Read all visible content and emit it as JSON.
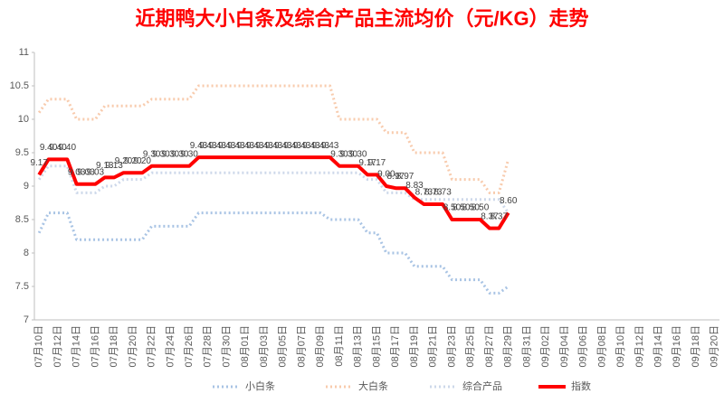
{
  "chart_data": {
    "type": "line",
    "title": "近期鸭大小白条及综合产品主流均价（元/KG）走势",
    "categories": [
      "07月10日",
      null,
      "07月12日",
      null,
      "07月14日",
      null,
      "07月16日",
      null,
      "07月18日",
      null,
      "07月20日",
      null,
      "07月22日",
      null,
      "07月24日",
      null,
      "07月26日",
      null,
      "07月28日",
      null,
      "07月30日",
      null,
      "08月01日",
      null,
      "08月03日",
      null,
      "08月05日",
      null,
      "08月07日",
      null,
      "08月09日",
      null,
      "08月11日",
      null,
      "08月13日",
      null,
      "08月15日",
      null,
      "08月17日",
      null,
      "08月19日",
      null,
      "08月21日",
      null,
      "08月23日",
      null,
      "08月25日",
      null,
      "08月27日",
      null,
      "08月29日",
      null,
      "08月31日",
      null,
      "09月02日",
      null,
      "09月04日",
      null,
      "09月06日",
      null,
      "09月08日",
      null,
      "09月10日",
      null,
      "09月12日",
      null,
      "09月14日",
      null,
      "09月16日",
      null,
      "09月18日",
      null,
      "09月20日"
    ],
    "series": [
      {
        "name": "小白条",
        "color": "#a9c4e4",
        "values": [
          8.3,
          8.6,
          8.6,
          8.6,
          8.2,
          8.2,
          8.2,
          8.2,
          8.2,
          8.2,
          8.2,
          8.2,
          8.4,
          8.4,
          8.4,
          8.4,
          8.4,
          8.6,
          8.6,
          8.6,
          8.6,
          8.6,
          8.6,
          8.6,
          8.6,
          8.6,
          8.6,
          8.6,
          8.6,
          8.6,
          8.6,
          8.5,
          8.5,
          8.5,
          8.5,
          8.3,
          8.3,
          8.0,
          8.0,
          8.0,
          7.8,
          7.8,
          7.8,
          7.8,
          7.6,
          7.6,
          7.6,
          7.6,
          7.4,
          7.4,
          7.5,
          null,
          null,
          null,
          null,
          null,
          null,
          null,
          null,
          null,
          null,
          null,
          null,
          null,
          null,
          null,
          null,
          null,
          null,
          null,
          null,
          null,
          null
        ]
      },
      {
        "name": "大白条",
        "color": "#f8cbad",
        "values": [
          10.1,
          10.3,
          10.3,
          10.3,
          10.0,
          10.0,
          10.0,
          10.2,
          10.2,
          10.2,
          10.2,
          10.2,
          10.3,
          10.3,
          10.3,
          10.3,
          10.3,
          10.5,
          10.5,
          10.5,
          10.5,
          10.5,
          10.5,
          10.5,
          10.5,
          10.5,
          10.5,
          10.5,
          10.5,
          10.5,
          10.5,
          10.5,
          10.0,
          10.0,
          10.0,
          10.0,
          10.0,
          9.8,
          9.8,
          9.8,
          9.5,
          9.5,
          9.5,
          9.5,
          9.1,
          9.1,
          9.1,
          9.1,
          8.9,
          8.9,
          9.4,
          null,
          null,
          null,
          null,
          null,
          null,
          null,
          null,
          null,
          null,
          null,
          null,
          null,
          null,
          null,
          null,
          null,
          null,
          null,
          null,
          null,
          null
        ]
      },
      {
        "name": "综合产品",
        "color": "#cdd8ea",
        "values": [
          9.1,
          9.3,
          9.3,
          9.3,
          8.9,
          8.9,
          8.9,
          9.0,
          9.0,
          9.1,
          9.1,
          9.1,
          9.2,
          9.2,
          9.2,
          9.2,
          9.2,
          9.2,
          9.2,
          9.2,
          9.2,
          9.2,
          9.2,
          9.2,
          9.2,
          9.2,
          9.2,
          9.2,
          9.2,
          9.2,
          9.2,
          9.2,
          9.2,
          9.2,
          9.2,
          9.1,
          9.1,
          8.9,
          8.9,
          8.9,
          8.8,
          8.8,
          8.8,
          8.8,
          8.8,
          8.8,
          8.8,
          8.8,
          8.8,
          8.8,
          8.6,
          null,
          null,
          null,
          null,
          null,
          null,
          null,
          null,
          null,
          null,
          null,
          null,
          null,
          null,
          null,
          null,
          null,
          null,
          null,
          null,
          null,
          null
        ]
      },
      {
        "name": "指数",
        "color": "#ff0000",
        "values": [
          9.17,
          9.4,
          9.4,
          9.4,
          9.03,
          9.03,
          9.03,
          9.13,
          9.13,
          9.2,
          9.2,
          9.2,
          9.3,
          9.3,
          9.3,
          9.3,
          9.3,
          9.43,
          9.43,
          9.43,
          9.43,
          9.43,
          9.43,
          9.43,
          9.43,
          9.43,
          9.43,
          9.43,
          9.43,
          9.43,
          9.43,
          9.43,
          9.3,
          9.3,
          9.3,
          9.17,
          9.17,
          9.0,
          8.97,
          8.97,
          8.83,
          8.73,
          8.73,
          8.73,
          8.5,
          8.5,
          8.5,
          8.5,
          8.37,
          8.37,
          8.6,
          null,
          null,
          null,
          null,
          null,
          null,
          null,
          null,
          null,
          null,
          null,
          null,
          null,
          null,
          null,
          null,
          null,
          null,
          null,
          null,
          null,
          null
        ],
        "value_labels": [
          "9.17",
          "9.40",
          "9.40",
          "9.40",
          "9.03",
          "9.03",
          "9.03",
          "9.13",
          "9.13",
          "9.20",
          "9.20",
          "9.20",
          "9.30",
          "9.30",
          "9.30",
          "9.30",
          "9.30",
          "9.43",
          "9.43",
          "9.43",
          "9.43",
          "9.43",
          "9.43",
          "9.43",
          "9.43",
          "9.43",
          "9.43",
          "9.43",
          "9.43",
          "9.43",
          "9.43",
          "9.43",
          "9.30",
          "9.30",
          "9.30",
          "9.17",
          "9.17",
          "9.00",
          "8.97",
          "8.97",
          "8.83",
          "8.73",
          "8.73",
          "8.73",
          "8.50",
          "8.50",
          "8.50",
          "8.50",
          "8.37",
          "8.37",
          "8.60",
          null,
          null,
          null,
          null,
          null,
          null,
          null,
          null,
          null,
          null,
          null,
          null,
          null,
          null,
          null,
          null,
          null,
          null,
          null,
          null,
          null,
          null
        ]
      }
    ],
    "ylim": [
      7,
      11
    ],
    "yticks": [
      7,
      7.5,
      8,
      8.5,
      9,
      9.5,
      10,
      10.5,
      11
    ],
    "grid": false,
    "legend": "bottom"
  }
}
